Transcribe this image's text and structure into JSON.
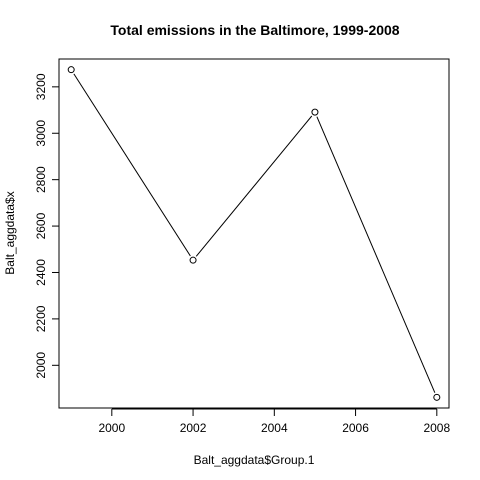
{
  "chart_data": {
    "type": "line",
    "title": "Total emissions in the Baltimore, 1999-2008",
    "xlabel": "Balt_aggdata$Group.1",
    "ylabel": "Balt_aggdata$x",
    "x": [
      1999,
      2002,
      2005,
      2008
    ],
    "series": [
      {
        "values": [
          3274,
          2453,
          3091,
          1862
        ]
      }
    ],
    "xlim": [
      1998.7,
      2008.3
    ],
    "ylim": [
      1816,
      3320
    ],
    "xticks": [
      2000,
      2002,
      2004,
      2006,
      2008
    ],
    "yticks": [
      2000,
      2200,
      2400,
      2600,
      2800,
      3000,
      3200
    ],
    "markers": "open-circle",
    "grid": false
  }
}
